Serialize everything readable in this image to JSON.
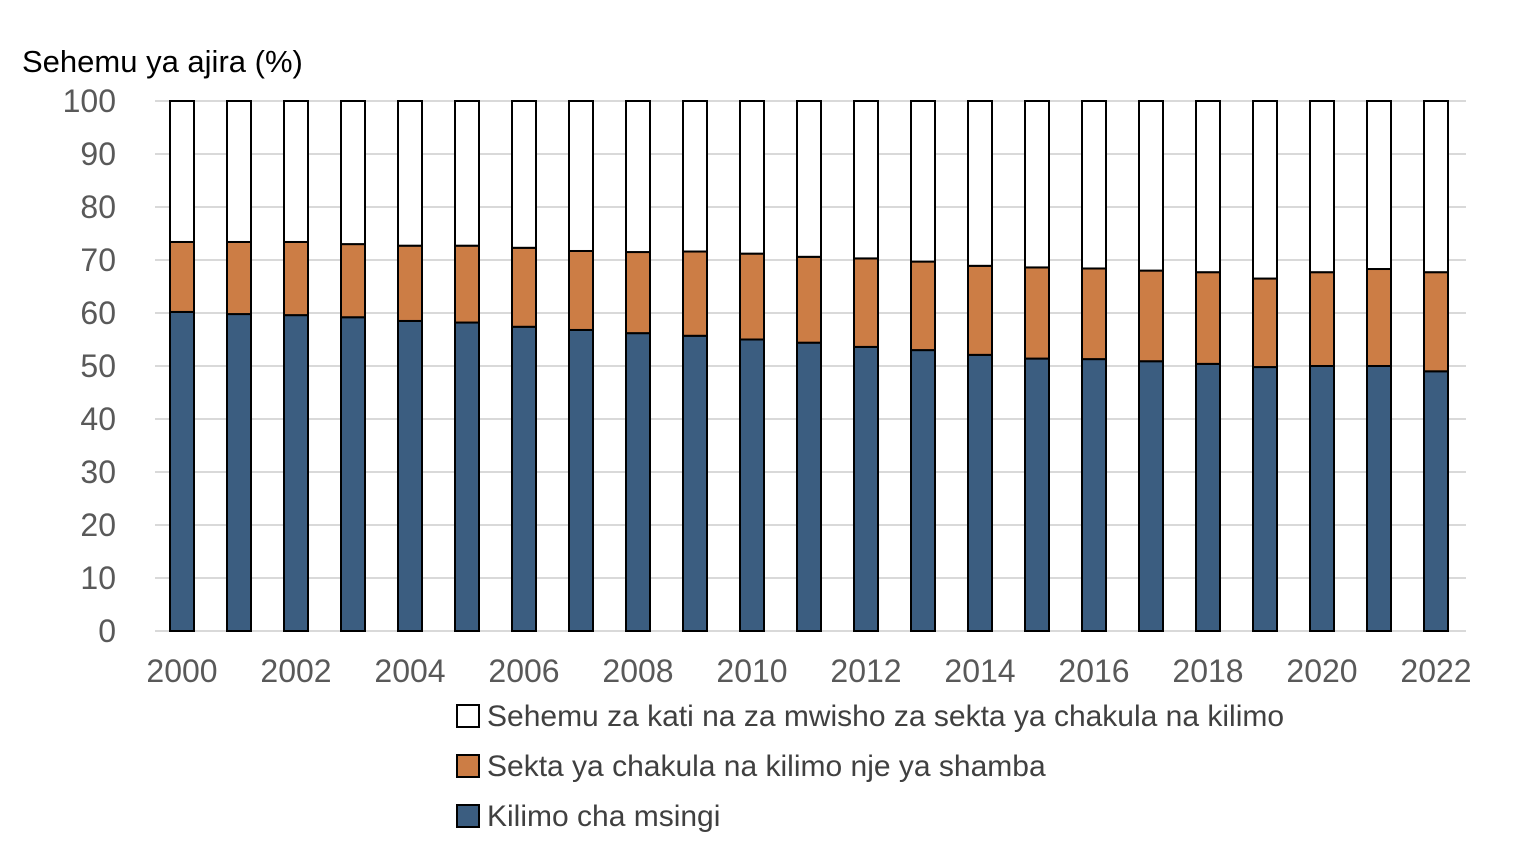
{
  "chart_data": {
    "type": "bar",
    "stacked": true,
    "title": "",
    "xlabel": "",
    "ylabel": "Sehemu ya ajira (%)",
    "ylim": [
      0,
      100
    ],
    "yticks": [
      0,
      10,
      20,
      30,
      40,
      50,
      60,
      70,
      80,
      90,
      100
    ],
    "grid": true,
    "legend_position": "bottom",
    "categories": [
      "2000",
      "2001",
      "2002",
      "2003",
      "2004",
      "2005",
      "2006",
      "2007",
      "2008",
      "2009",
      "2010",
      "2011",
      "2012",
      "2013",
      "2014",
      "2015",
      "2016",
      "2017",
      "2018",
      "2019",
      "2020",
      "2021",
      "2022"
    ],
    "xtick_labels": [
      "2000",
      "2002",
      "2004",
      "2006",
      "2008",
      "2010",
      "2012",
      "2014",
      "2016",
      "2018",
      "2020",
      "2022"
    ],
    "series": [
      {
        "name": "Kilimo cha msingi",
        "color": "#3b5d80",
        "values": [
          60.2,
          59.8,
          59.6,
          59.2,
          58.5,
          58.2,
          57.4,
          56.8,
          56.2,
          55.7,
          55.0,
          54.4,
          53.6,
          53.0,
          52.1,
          51.4,
          51.3,
          50.9,
          50.4,
          49.8,
          50.0,
          50.0,
          49.0
        ]
      },
      {
        "name": "Sekta ya chakula na kilimo nje ya shamba",
        "color": "#cc7d45",
        "values": [
          13.2,
          13.6,
          13.8,
          13.8,
          14.2,
          14.5,
          14.9,
          14.9,
          15.3,
          15.9,
          16.2,
          16.2,
          16.7,
          16.7,
          16.8,
          17.2,
          17.1,
          17.1,
          17.3,
          16.7,
          17.7,
          18.3,
          18.7
        ]
      },
      {
        "name": "Sehemu za kati na za mwisho za sekta ya chakula na kilimo",
        "color": "#ffffff",
        "values": [
          26.6,
          26.6,
          26.6,
          27.0,
          27.3,
          27.3,
          27.7,
          28.3,
          28.5,
          28.4,
          28.8,
          29.4,
          29.7,
          30.3,
          31.1,
          31.4,
          31.6,
          32.0,
          32.3,
          33.5,
          32.3,
          31.7,
          32.3
        ]
      }
    ]
  }
}
